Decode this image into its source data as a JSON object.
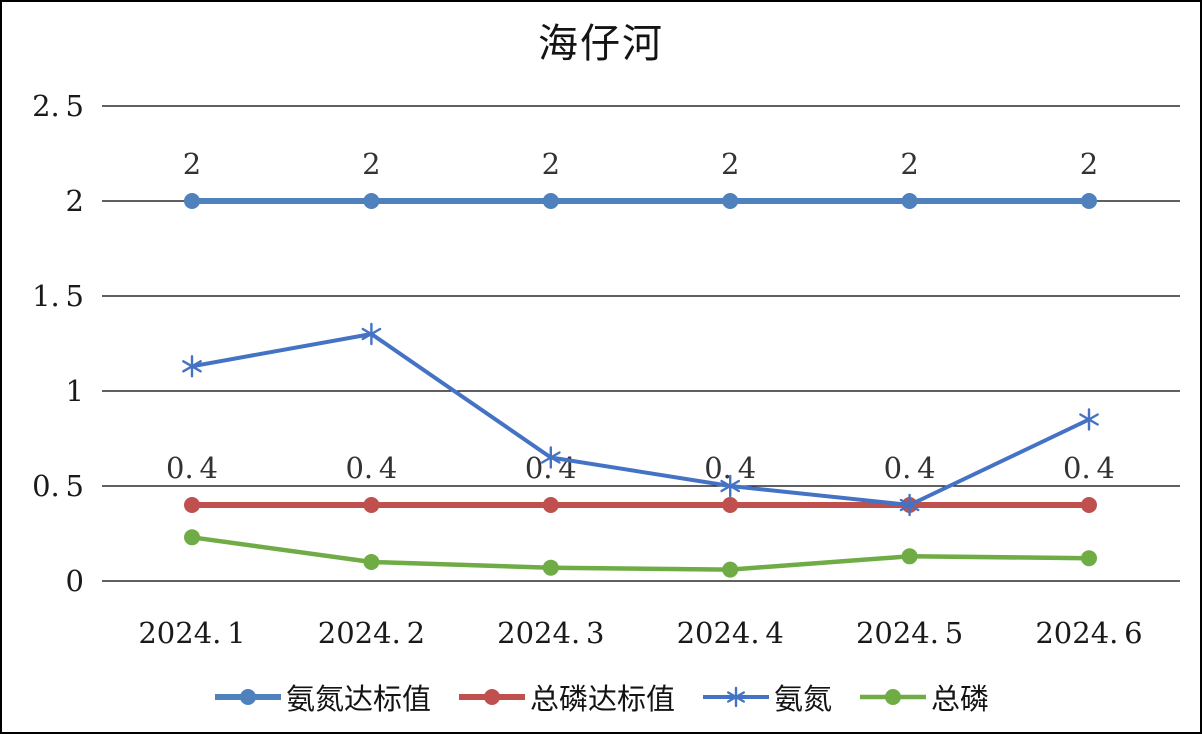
{
  "title": "海仔河",
  "chart_data": {
    "type": "line",
    "title": "海仔河",
    "xlabel": "",
    "ylabel": "",
    "categories": [
      "2024.1",
      "2024.2",
      "2024.3",
      "2024.4",
      "2024.5",
      "2024.6"
    ],
    "y_ticks": [
      0,
      0.5,
      1,
      1.5,
      2,
      2.5
    ],
    "ylim": [
      0,
      2.5
    ],
    "grid": "horizontal-only",
    "legend_position": "bottom",
    "series": [
      {
        "id": "ammonia-standard",
        "name": "氨氮达标值",
        "color": "#4F81BD",
        "marker": "circle",
        "line_width": 6,
        "values": [
          2,
          2,
          2,
          2,
          2,
          2
        ],
        "data_labels": [
          "2",
          "2",
          "2",
          "2",
          "2",
          "2"
        ]
      },
      {
        "id": "phosphorus-standard",
        "name": "总磷达标值",
        "color": "#C0504D",
        "marker": "circle",
        "line_width": 6,
        "values": [
          0.4,
          0.4,
          0.4,
          0.4,
          0.4,
          0.4
        ],
        "data_labels": [
          "0.4",
          "0.4",
          "0.4",
          "0.4",
          "0.4",
          "0.4"
        ]
      },
      {
        "id": "ammonia",
        "name": "氨氮",
        "color": "#4472C4",
        "marker": "asterisk",
        "line_width": 4,
        "values": [
          1.13,
          1.3,
          0.65,
          0.5,
          0.4,
          0.85
        ]
      },
      {
        "id": "phosphorus",
        "name": "总磷",
        "color": "#6FAC46",
        "marker": "circle",
        "line_width": 4.5,
        "values": [
          0.23,
          0.1,
          0.07,
          0.06,
          0.13,
          0.12
        ]
      }
    ],
    "colors": {
      "gridline": "#000000",
      "tick_label": "#1a1a1a",
      "data_label": "#333333"
    }
  }
}
